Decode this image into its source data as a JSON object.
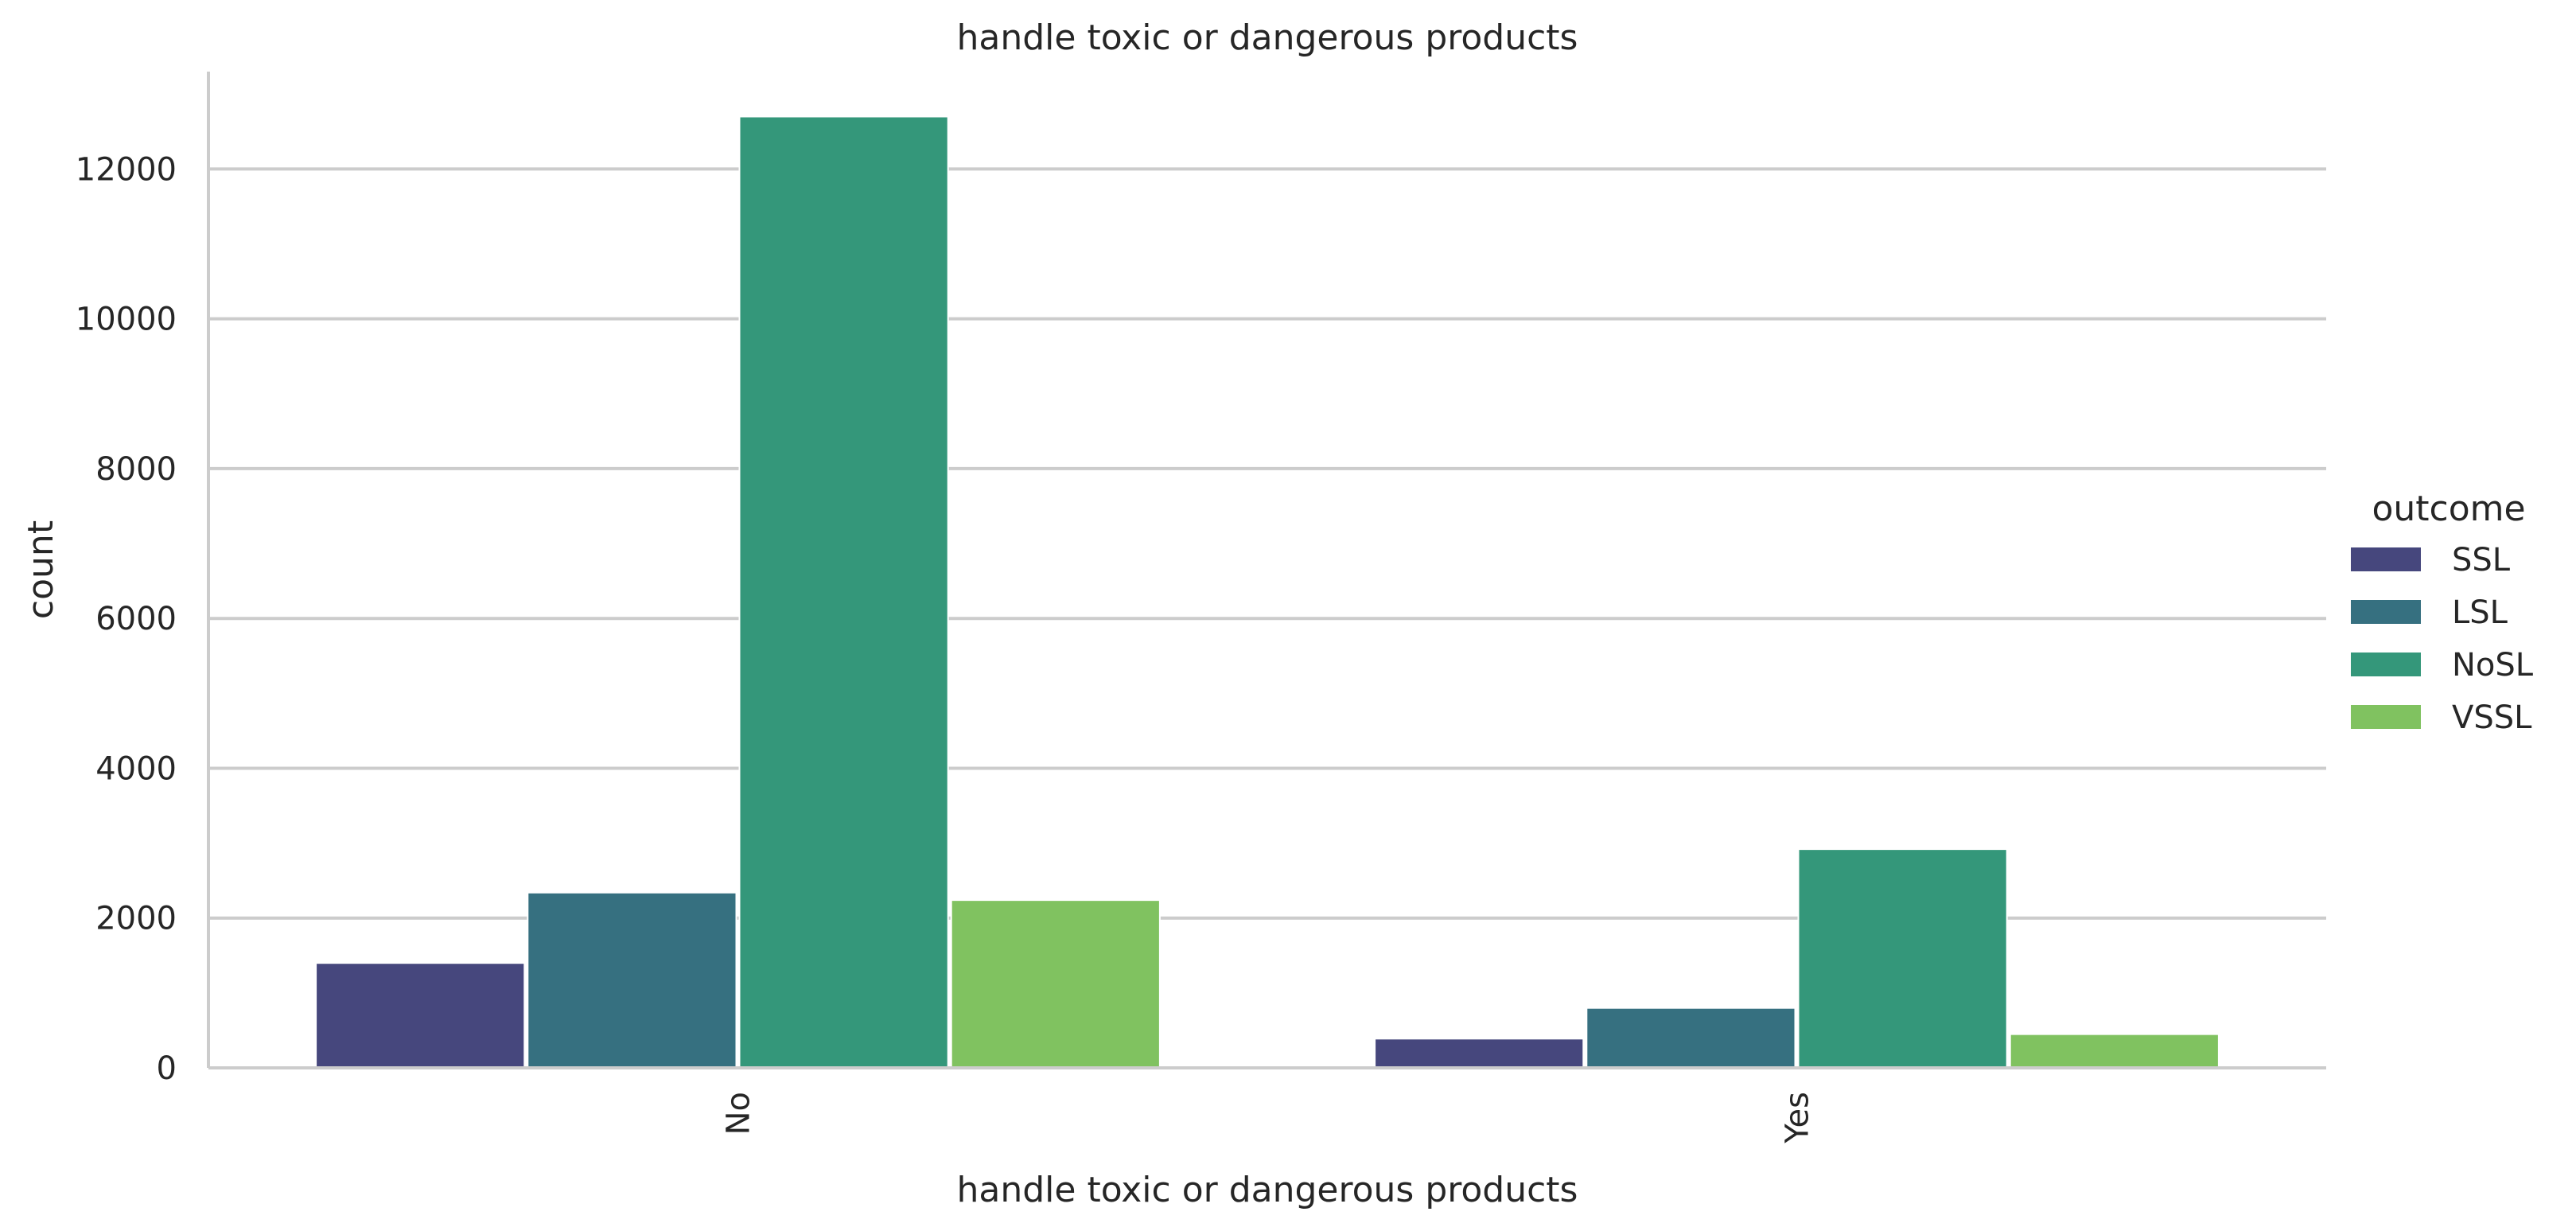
{
  "chart_data": {
    "type": "bar",
    "title": "handle toxic or dangerous products",
    "xlabel": "handle toxic or dangerous products",
    "ylabel": "count",
    "categories": [
      "No",
      "Yes"
    ],
    "series": [
      {
        "name": "SSL",
        "color": "#46477d",
        "values": [
          1400,
          390
        ]
      },
      {
        "name": "LSL",
        "color": "#367080",
        "values": [
          2340,
          800
        ]
      },
      {
        "name": "NoSL",
        "color": "#34977a",
        "values": [
          12700,
          2920
        ]
      },
      {
        "name": "VSSL",
        "color": "#80c260",
        "values": [
          2240,
          450
        ]
      }
    ],
    "ylim": [
      0,
      13300
    ],
    "yticks": [
      0,
      2000,
      4000,
      6000,
      8000,
      10000,
      12000
    ],
    "grid": true,
    "legend": {
      "title": "outcome",
      "placement": "right"
    }
  }
}
